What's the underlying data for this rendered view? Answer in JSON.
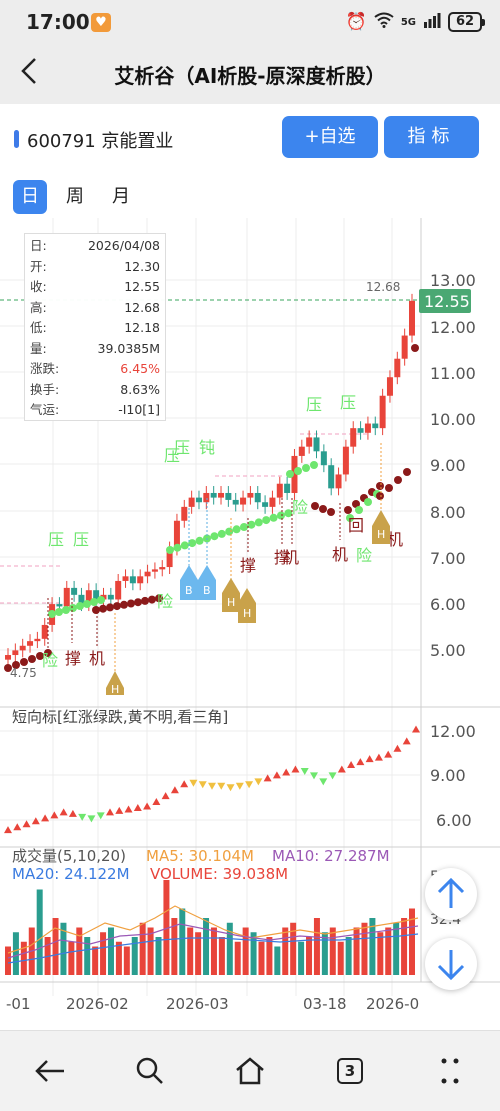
{
  "status": {
    "time": "17:00",
    "network": "5G",
    "battery": "62"
  },
  "nav": {
    "title": "艾析谷（AI析股-原深度析股）"
  },
  "stock": {
    "name": "600791 京能置业"
  },
  "buttons": {
    "watch": "+自选",
    "index": "指标"
  },
  "tabs": {
    "day": "日",
    "week": "周",
    "month": "月"
  },
  "info": {
    "date_k": "日:",
    "date_v": "2026/04/08",
    "open_k": "开:",
    "open_v": "12.30",
    "close_k": "收:",
    "close_v": "12.55",
    "high_k": "高:",
    "high_v": "12.68",
    "low_k": "低:",
    "low_v": "12.18",
    "vol_k": "量:",
    "vol_v": "39.0385M",
    "chg_k": "涨跌:",
    "chg_v": "6.45%",
    "turn_k": "换手:",
    "turn_v": "8.63%",
    "luck_k": "气运:",
    "luck_v": "-I10[1]"
  },
  "price_axis": [
    "13.00",
    "12.00",
    "11.00",
    "10.00",
    "9.00",
    "8.00",
    "7.00",
    "6.00",
    "5.00"
  ],
  "price_tag": "12.55",
  "high_label": "12.68",
  "low_label": "4.75",
  "indicator": {
    "title": "短向标[红涨绿跌,黄不明,看三角]",
    "axis": [
      "12.00",
      "9.00",
      "6.00"
    ]
  },
  "volume": {
    "title": "成交量(5,10,20)",
    "ma5": "MA5: 30.104M",
    "ma10": "MA10: 27.287M",
    "ma20": "MA20: 24.122M",
    "vol": "VOLUME: 39.038M",
    "axis_top": "5",
    "axis_mid": "32.4"
  },
  "date_axis": [
    "-01",
    "2026-02",
    "2026-03",
    "03-18",
    "2026-0"
  ],
  "markers": {
    "ya": "压",
    "cheng": "撑",
    "ji": "机",
    "xian": "险",
    "dun": "钝",
    "hui": "回",
    "h": "H",
    "b": "B"
  },
  "colors": {
    "up": "#e8443a",
    "down": "#2a9d8f",
    "accent": "#3c85ee",
    "green_dot": "#6ee66e",
    "dark_red_dot": "#8b1a1a"
  }
}
